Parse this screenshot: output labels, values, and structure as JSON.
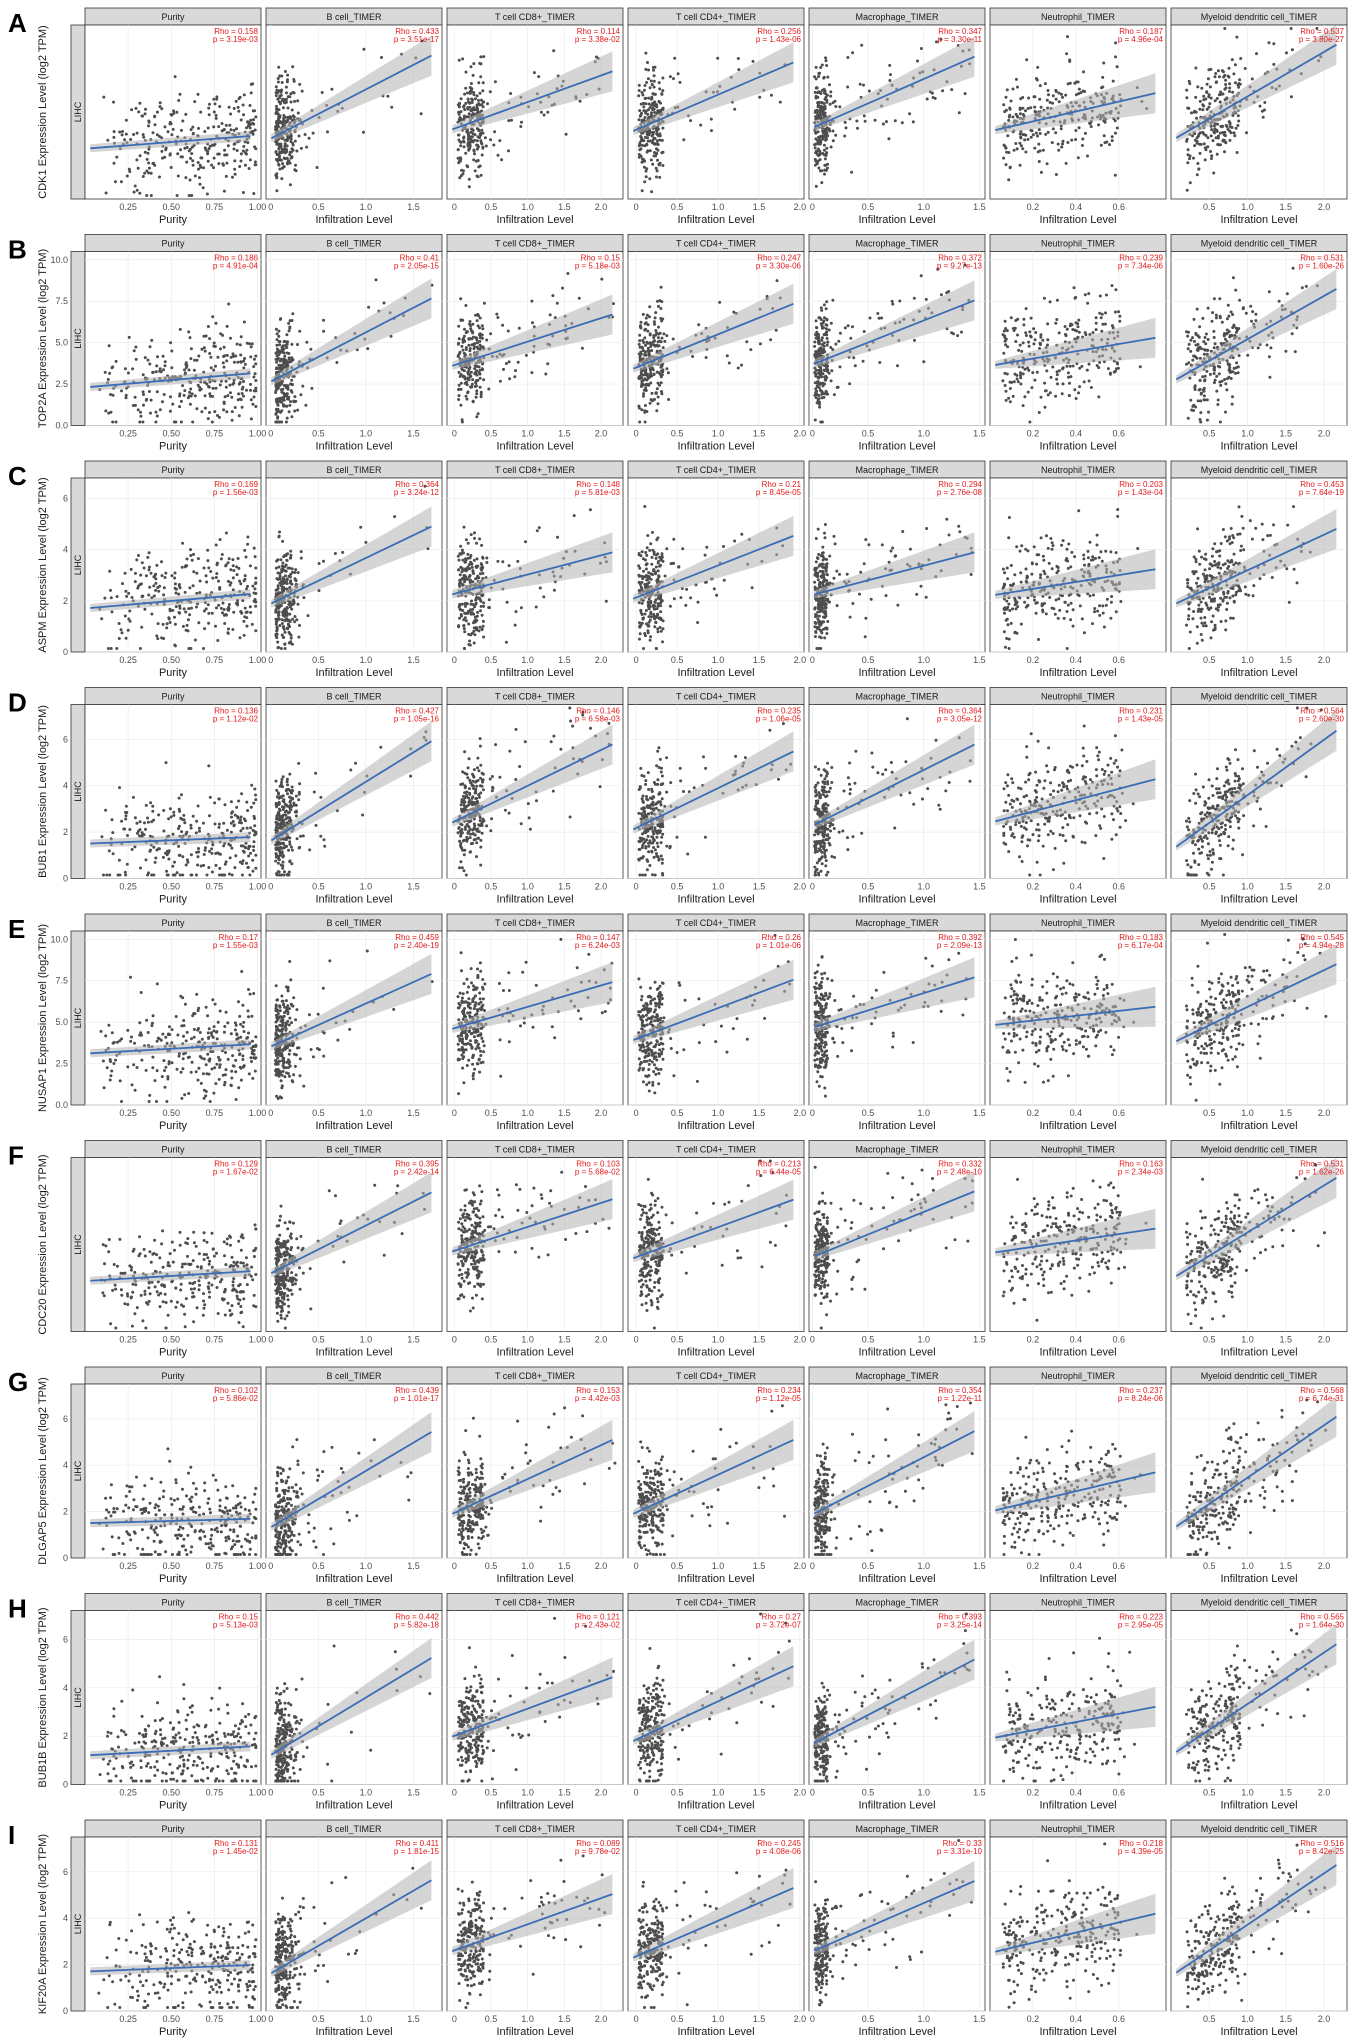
{
  "colors": {
    "point": "#4d4d4d",
    "line": "#3a6db5",
    "band": "#b3b3b3",
    "stat_text": "#e41a1c",
    "strip": "#d9d9d9"
  },
  "facet_titles": [
    "Purity",
    "B cell_TIMER",
    "T cell CD8+_TIMER",
    "T cell CD4+_TIMER",
    "Macrophage_TIMER",
    "Neutrophil_TIMER",
    "Myeloid dendritic cell_TIMER"
  ],
  "cancer_label": "LIHC",
  "xlabels": [
    "Purity",
    "Infiltration Level",
    "Infiltration Level",
    "Infiltration Level",
    "Infiltration Level",
    "Infiltration Level",
    "Infiltration Level"
  ],
  "x_axes": [
    {
      "xlim": [
        0.0,
        1.02
      ],
      "ticks": [
        "0.25",
        "0.50",
        "0.75",
        "1.00"
      ],
      "tickvals": [
        0.25,
        0.5,
        0.75,
        1.0
      ]
    },
    {
      "xlim": [
        -0.05,
        1.8
      ],
      "ticks": [
        "0",
        "0.5",
        "1.0",
        "1.5"
      ],
      "tickvals": [
        0,
        0.5,
        1.0,
        1.5
      ]
    },
    {
      "xlim": [
        -0.1,
        2.3
      ],
      "ticks": [
        "0",
        "0.5",
        "1.0",
        "1.5",
        "2.0"
      ],
      "tickvals": [
        0,
        0.5,
        1.0,
        1.5,
        2.0
      ]
    },
    {
      "xlim": [
        -0.1,
        2.05
      ],
      "ticks": [
        "0",
        "0.5",
        "1.0",
        "1.5",
        "2.0"
      ],
      "tickvals": [
        0,
        0.5,
        1.0,
        1.5,
        2.0
      ]
    },
    {
      "xlim": [
        -0.03,
        1.55
      ],
      "ticks": [
        "0",
        "0.5",
        "1.0",
        "1.5"
      ],
      "tickvals": [
        0,
        0.5,
        1.0,
        1.5
      ]
    },
    {
      "xlim": [
        0.0,
        0.82
      ],
      "ticks": [
        "0.2",
        "0.4",
        "0.6"
      ],
      "tickvals": [
        0.2,
        0.4,
        0.6
      ]
    },
    {
      "xlim": [
        0.0,
        2.3
      ],
      "ticks": [
        "0.5",
        "1.0",
        "1.5",
        "2.0"
      ],
      "tickvals": [
        0.5,
        1.0,
        1.5,
        2.0
      ]
    }
  ],
  "chart_data": [
    {
      "type": "scatter",
      "letter": "A",
      "ylabel": "CDK1 Expression Level (log2 TPM)",
      "ylim": [
        0,
        9
      ],
      "yticks": [],
      "xlabel": "Infiltration Level",
      "stats": [
        [
          "Rho = 0.158",
          "p = 3.19e-03"
        ],
        [
          "Rho = 0.433",
          "p = 3.51e-17"
        ],
        [
          "Rho = 0.114",
          "p = 3.38e-02"
        ],
        [
          "Rho = 0.256",
          "p = 1.43e-06"
        ],
        [
          "Rho = 0.347",
          "p = 3.30e-11"
        ],
        [
          "Rho = 0.187",
          "p = 4.96e-04"
        ],
        [
          "Rho = 0.537",
          "p = 3.80e-27"
        ]
      ],
      "fits": [
        [
          2.6,
          3.3
        ],
        [
          3.0,
          7.7
        ],
        [
          3.5,
          6.8
        ],
        [
          3.4,
          7.3
        ],
        [
          3.6,
          7.6
        ],
        [
          3.5,
          5.6
        ],
        [
          3.0,
          8.3
        ]
      ]
    },
    {
      "type": "scatter",
      "letter": "B",
      "ylabel": "TOP2A Expression Level (log2 TPM)",
      "ylim": [
        0,
        10.5
      ],
      "yticks": [
        "0.0",
        "2.5",
        "5.0",
        "7.5",
        "10.0"
      ],
      "xlabel": "Infiltration Level",
      "stats": [
        [
          "Rho = 0.186",
          "p = 4.91e-04"
        ],
        [
          "Rho = 0.41",
          "p = 2.05e-15"
        ],
        [
          "Rho = 0.15",
          "p = 5.18e-03"
        ],
        [
          "Rho = 0.247",
          "p = 3.30e-06"
        ],
        [
          "Rho = 0.372",
          "p = 9.27e-13"
        ],
        [
          "Rho = 0.239",
          "p = 7.34e-06"
        ],
        [
          "Rho = 0.531",
          "p = 1.60e-26"
        ]
      ],
      "fits": [
        [
          2.3,
          3.2
        ],
        [
          2.5,
          8.0
        ],
        [
          3.5,
          6.9
        ],
        [
          3.3,
          7.6
        ],
        [
          3.6,
          7.8
        ],
        [
          3.6,
          5.4
        ],
        [
          2.6,
          8.6
        ]
      ]
    },
    {
      "type": "scatter",
      "letter": "C",
      "ylabel": "ASPM Expression Level (log2 TPM)",
      "ylim": [
        0,
        6.8
      ],
      "yticks": [
        "0",
        "2",
        "4",
        "6"
      ],
      "xlabel": "Infiltration Level",
      "stats": [
        [
          "Rho = 0.169",
          "p = 1.56e-03"
        ],
        [
          "Rho = 0.364",
          "p = 3.24e-12"
        ],
        [
          "Rho = 0.148",
          "p = 5.81e-03"
        ],
        [
          "Rho = 0.21",
          "p = 8.45e-05"
        ],
        [
          "Rho = 0.294",
          "p = 2.76e-08"
        ],
        [
          "Rho = 0.203",
          "p = 1.43e-04"
        ],
        [
          "Rho = 0.453",
          "p = 7.64e-19"
        ]
      ],
      "fits": [
        [
          1.7,
          2.3
        ],
        [
          1.8,
          5.1
        ],
        [
          2.2,
          4.0
        ],
        [
          2.0,
          4.7
        ],
        [
          2.2,
          4.0
        ],
        [
          2.2,
          3.3
        ],
        [
          1.8,
          5.0
        ]
      ]
    },
    {
      "type": "scatter",
      "letter": "D",
      "ylabel": "BUB1 Expression Level (log2 TPM)",
      "ylim": [
        0,
        7.5
      ],
      "yticks": [
        "0",
        "2",
        "4",
        "6"
      ],
      "xlabel": "Infiltration Level",
      "stats": [
        [
          "Rho = 0.136",
          "p = 1.12e-02"
        ],
        [
          "Rho = 0.427",
          "p = 1.05e-16"
        ],
        [
          "Rho = 0.146",
          "p = 6.58e-03"
        ],
        [
          "Rho = 0.235",
          "p = 1.06e-05"
        ],
        [
          "Rho = 0.364",
          "p = 3.05e-12"
        ],
        [
          "Rho = 0.231",
          "p = 1.43e-05"
        ],
        [
          "Rho = 0.564",
          "p = 2.60e-30"
        ]
      ],
      "fits": [
        [
          1.5,
          1.8
        ],
        [
          1.5,
          6.2
        ],
        [
          2.3,
          6.0
        ],
        [
          2.0,
          5.7
        ],
        [
          2.2,
          6.0
        ],
        [
          2.4,
          4.4
        ],
        [
          1.2,
          6.7
        ]
      ]
    },
    {
      "type": "scatter",
      "letter": "E",
      "ylabel": "NUSAP1 Expression Level (log2 TPM)",
      "ylim": [
        0,
        10.5
      ],
      "yticks": [
        "0.0",
        "2.5",
        "5.0",
        "7.5",
        "10.0"
      ],
      "xlabel": "Infiltration Level",
      "stats": [
        [
          "Rho = 0.17",
          "p = 1.55e-03"
        ],
        [
          "Rho = 0.459",
          "p = 2.40e-19"
        ],
        [
          "Rho = 0.147",
          "p = 6.24e-03"
        ],
        [
          "Rho = 0.26",
          "p = 1.01e-06"
        ],
        [
          "Rho = 0.392",
          "p = 2.09e-13"
        ],
        [
          "Rho = 0.183",
          "p = 6.17e-04"
        ],
        [
          "Rho = 0.545",
          "p = 4.94e-28"
        ]
      ],
      "fits": [
        [
          3.1,
          3.7
        ],
        [
          3.4,
          8.2
        ],
        [
          4.5,
          7.6
        ],
        [
          3.8,
          7.8
        ],
        [
          4.6,
          7.9
        ],
        [
          4.8,
          6.0
        ],
        [
          3.7,
          8.8
        ]
      ]
    },
    {
      "type": "scatter",
      "letter": "F",
      "ylabel": "CDC20 Expression Level (log2 TPM)",
      "ylim": [
        0,
        10
      ],
      "yticks": [],
      "xlabel": "Infiltration Level",
      "stats": [
        [
          "Rho = 0.129",
          "p = 1.67e-02"
        ],
        [
          "Rho = 0.395",
          "p = 2.42e-14"
        ],
        [
          "Rho = 0.103",
          "p = 5.68e-02"
        ],
        [
          "Rho = 0.213",
          "p = 6.44e-05"
        ],
        [
          "Rho = 0.332",
          "p = 2.48e-10"
        ],
        [
          "Rho = 0.163",
          "p = 2.34e-03"
        ],
        [
          "Rho = 0.531",
          "p = 1.62e-26"
        ]
      ],
      "fits": [
        [
          2.9,
          3.5
        ],
        [
          3.2,
          8.3
        ],
        [
          4.5,
          7.8
        ],
        [
          4.1,
          7.8
        ],
        [
          4.2,
          8.3
        ],
        [
          4.5,
          6.0
        ],
        [
          3.0,
          9.2
        ]
      ]
    },
    {
      "type": "scatter",
      "letter": "G",
      "ylabel": "DLGAP5 Expression Level (log2 TPM)",
      "ylim": [
        0,
        7.5
      ],
      "yticks": [
        "0",
        "2",
        "4",
        "6"
      ],
      "xlabel": "Infiltration Level",
      "stats": [
        [
          "Rho = 0.102",
          "p = 5.86e-02"
        ],
        [
          "Rho = 0.439",
          "p = 1.01e-17"
        ],
        [
          "Rho = 0.153",
          "p = 4.42e-03"
        ],
        [
          "Rho = 0.234",
          "p = 1.12e-05"
        ],
        [
          "Rho = 0.354",
          "p = 1.22e-11"
        ],
        [
          "Rho = 0.237",
          "p = 8.24e-06"
        ],
        [
          "Rho = 0.568",
          "p = 6.74e-31"
        ]
      ],
      "fits": [
        [
          1.5,
          1.7
        ],
        [
          1.2,
          5.7
        ],
        [
          1.8,
          5.3
        ],
        [
          1.8,
          5.3
        ],
        [
          1.8,
          5.7
        ],
        [
          2.0,
          3.8
        ],
        [
          1.2,
          6.4
        ]
      ]
    },
    {
      "type": "scatter",
      "letter": "H",
      "ylabel": "BUB1B Expression Level (log2 TPM)",
      "ylim": [
        0,
        7.2
      ],
      "yticks": [
        "0",
        "2",
        "4",
        "6"
      ],
      "xlabel": "Infiltration Level",
      "stats": [
        [
          "Rho = 0.15",
          "p = 5.13e-03"
        ],
        [
          "Rho = 0.442",
          "p = 5.82e-18"
        ],
        [
          "Rho = 0.121",
          "p = 2.43e-02"
        ],
        [
          "Rho = 0.27",
          "p = 3.72e-07"
        ],
        [
          "Rho = 0.393",
          "p = 3.25e-14"
        ],
        [
          "Rho = 0.223",
          "p = 2.95e-05"
        ],
        [
          "Rho = 0.565",
          "p = 1.64e-30"
        ]
      ],
      "fits": [
        [
          1.2,
          1.6
        ],
        [
          1.1,
          5.5
        ],
        [
          1.9,
          4.6
        ],
        [
          1.7,
          5.1
        ],
        [
          1.6,
          5.4
        ],
        [
          1.9,
          3.3
        ],
        [
          1.2,
          6.1
        ]
      ]
    },
    {
      "type": "scatter",
      "letter": "I",
      "ylabel": "KIF20A Expression Level (log2 TPM)",
      "ylim": [
        0,
        7.5
      ],
      "yticks": [
        "0",
        "2",
        "4",
        "6"
      ],
      "xlabel": "Infiltration Level",
      "stats": [
        [
          "Rho = 0.131",
          "p = 1.45e-02"
        ],
        [
          "Rho = 0.411",
          "p = 1.81e-15"
        ],
        [
          "Rho = 0.089",
          "p = 9.78e-02"
        ],
        [
          "Rho = 0.245",
          "p = 4.08e-06"
        ],
        [
          "Rho = 0.33",
          "p = 3.31e-10"
        ],
        [
          "Rho = 0.218",
          "p = 4.39e-05"
        ],
        [
          "Rho = 0.516",
          "p = 8.42e-25"
        ]
      ],
      "fits": [
        [
          1.7,
          2.0
        ],
        [
          1.5,
          5.9
        ],
        [
          2.5,
          5.2
        ],
        [
          2.2,
          5.5
        ],
        [
          2.5,
          5.8
        ],
        [
          2.5,
          4.3
        ],
        [
          1.5,
          6.6
        ]
      ]
    }
  ]
}
